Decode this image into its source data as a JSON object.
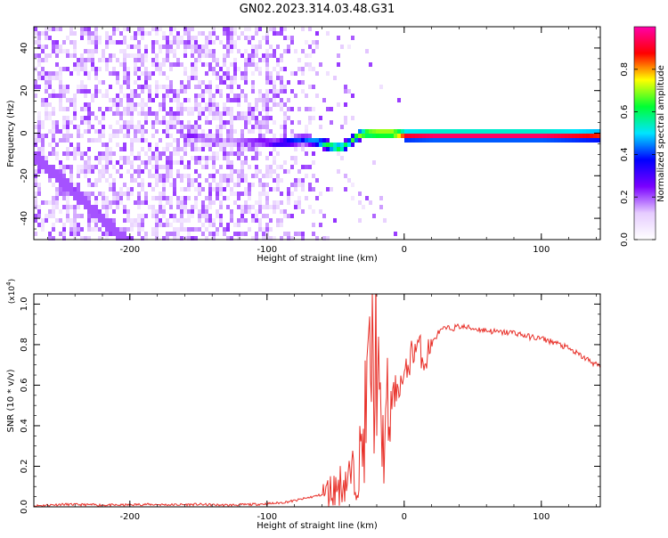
{
  "figure_title": "GN02.2023.314.03.48.G31",
  "chart_data": [
    {
      "type": "heatmap",
      "xlabel": "Height of straight line (km)",
      "ylabel": "Frequency (Hz)",
      "xlim": [
        -270,
        143
      ],
      "ylim": [
        -50,
        50
      ],
      "x_ticks": [
        -200,
        -100,
        0,
        100
      ],
      "x_tick_labels": [
        "-200",
        "-100",
        "0",
        "100"
      ],
      "y_ticks": [
        -40,
        -20,
        0,
        20,
        40
      ],
      "y_tick_labels": [
        "-40",
        "-20",
        "0",
        "20",
        "40"
      ],
      "colorbar": {
        "label": "Normalized spectral amplitude",
        "range": [
          0,
          1
        ],
        "ticks": [
          0.0,
          0.2,
          0.4,
          0.6,
          0.8
        ],
        "tick_labels": [
          "0.0",
          "0.2",
          "0.4",
          "0.6",
          "0.8"
        ],
        "colormap": [
          "#ffffff",
          "#e6ccff",
          "#7a00ff",
          "#0000ff",
          "#00e5ff",
          "#00ff33",
          "#ffff00",
          "#ff0000",
          "#ff00aa"
        ]
      },
      "signal_track": {
        "x": [
          -155,
          -145,
          -135,
          -105,
          -95,
          -85,
          -75,
          -65,
          -55,
          -48,
          -42,
          -35,
          -28,
          -20,
          -10,
          0,
          20,
          50,
          100,
          143
        ],
        "y": [
          0,
          -2,
          -3,
          -3,
          -4,
          -3,
          -2,
          -3,
          -5,
          -6,
          -4,
          0,
          1,
          1,
          1,
          0,
          0,
          0,
          0,
          0
        ],
        "amplitude": [
          0.25,
          0.2,
          0.15,
          0.3,
          0.35,
          0.45,
          0.4,
          0.55,
          0.7,
          0.75,
          0.6,
          0.75,
          0.85,
          0.9,
          0.9,
          0.95,
          1.0,
          1.0,
          1.0,
          0.9
        ]
      },
      "grid": false
    },
    {
      "type": "line",
      "xlabel": "Height of straight line (km)",
      "ylabel": "SNR (10 * v/v)",
      "y_multiplier": "(x10^4)",
      "xlim": [
        -270,
        143
      ],
      "ylim": [
        0,
        1.05
      ],
      "x_ticks": [
        -200,
        -100,
        0,
        100
      ],
      "x_tick_labels": [
        "-200",
        "-100",
        "0",
        "100"
      ],
      "y_ticks": [
        0.0,
        0.2,
        0.4,
        0.6,
        0.8,
        1.0
      ],
      "y_tick_labels": [
        "0.0",
        "0.2",
        "0.4",
        "0.6",
        "0.8",
        "1.0"
      ],
      "series": [
        {
          "color": "#e8312a",
          "x": [
            -270,
            -250,
            -230,
            -210,
            -190,
            -170,
            -150,
            -130,
            -110,
            -100,
            -90,
            -80,
            -70,
            -60,
            -50,
            -45,
            -40,
            -35,
            -30,
            -27,
            -24,
            -22,
            -20,
            -18,
            -15,
            -12,
            -10,
            -5,
            0,
            5,
            10,
            15,
            20,
            25,
            30,
            35,
            40,
            50,
            60,
            70,
            80,
            90,
            100,
            110,
            120,
            130,
            143
          ],
          "y": [
            0.005,
            0.012,
            0.01,
            0.008,
            0.012,
            0.01,
            0.012,
            0.008,
            0.012,
            0.015,
            0.02,
            0.03,
            0.045,
            0.06,
            0.09,
            0.12,
            0.14,
            0.17,
            0.3,
            0.55,
            0.75,
            0.6,
            0.85,
            0.4,
            0.3,
            0.45,
            0.5,
            0.6,
            0.62,
            0.75,
            0.8,
            0.72,
            0.8,
            0.86,
            0.88,
            0.88,
            0.89,
            0.88,
            0.87,
            0.86,
            0.86,
            0.84,
            0.83,
            0.81,
            0.78,
            0.74,
            0.69
          ]
        }
      ],
      "grid": false
    }
  ]
}
